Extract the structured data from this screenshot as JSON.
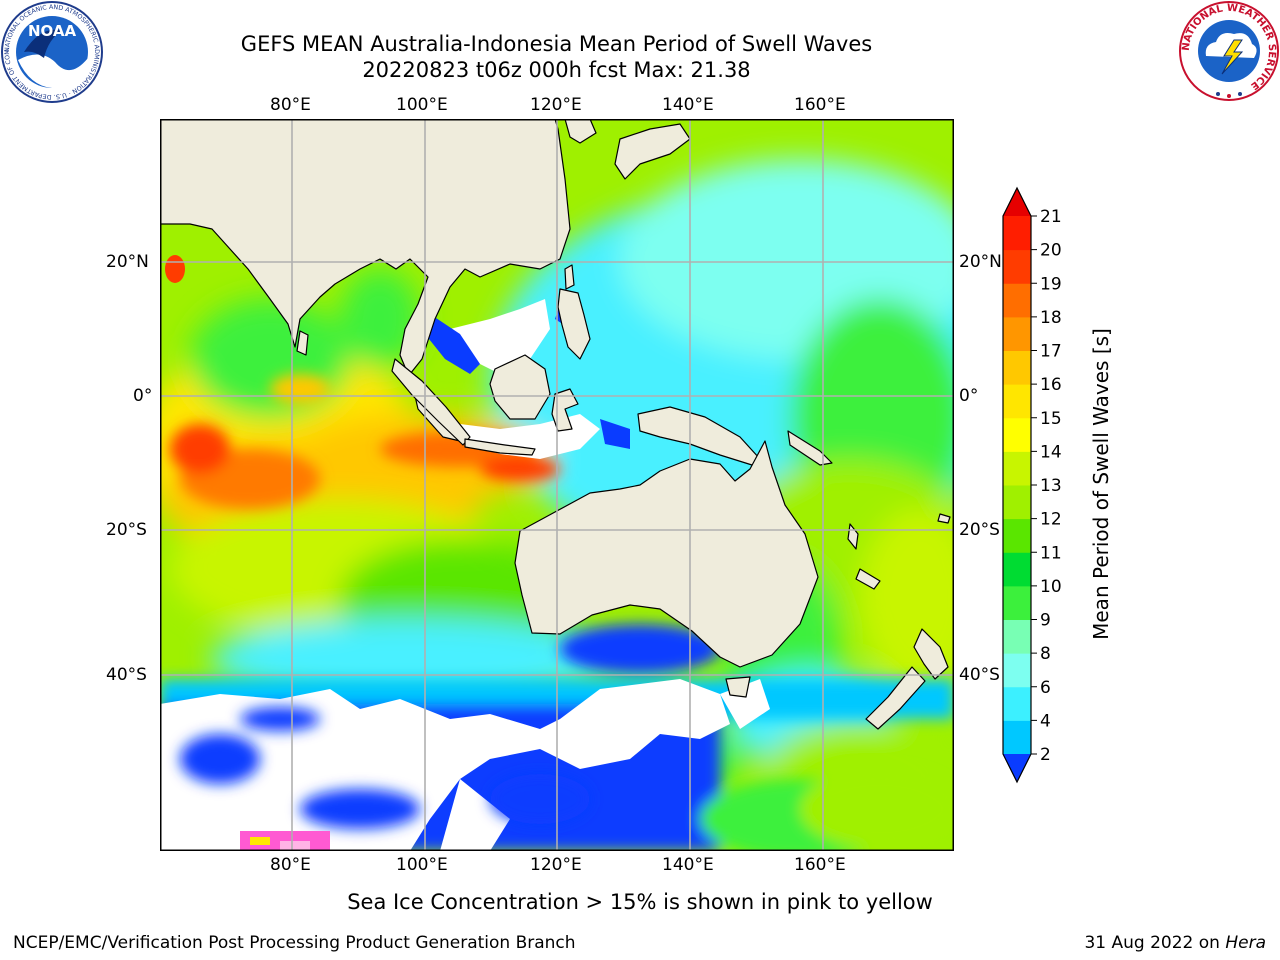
{
  "title": {
    "line1": "GEFS MEAN Australia-Indonesia Mean Period of Swell Waves",
    "line2": "20220823 t06z 000h fcst   Max: 21.38"
  },
  "logos": {
    "noaa_text": "NOAA",
    "noaa_ring": "NATIONAL OCEANIC AND ATMOSPHERIC ADMINISTRATION · U.S. DEPARTMENT OF COMMERCE",
    "nws_ring": "NATIONAL WEATHER SERVICE"
  },
  "map": {
    "lon_labels": [
      "80°E",
      "100°E",
      "120°E",
      "140°E",
      "160°E"
    ],
    "lat_labels_left": [
      "20°N",
      "0°",
      "20°S",
      "40°S"
    ],
    "lat_labels_right": [
      "20°N",
      "0°",
      "20°S",
      "40°S"
    ],
    "colors": {
      "land": "#efecdc",
      "ice_free_white": "#ffffff",
      "grid": "#b0b0b0"
    }
  },
  "colorbar": {
    "label": "Mean Period of Swell Waves [s]",
    "ticks": [
      "2",
      "4",
      "6",
      "8",
      "9",
      "10",
      "11",
      "12",
      "13",
      "14",
      "15",
      "16",
      "17",
      "18",
      "19",
      "20",
      "21"
    ],
    "colors": [
      "#0a3cff",
      "#00c8ff",
      "#3cf0ff",
      "#7dfff0",
      "#78ffb4",
      "#3cf03c",
      "#00dc32",
      "#5ae600",
      "#a0f000",
      "#c8f500",
      "#ffff00",
      "#ffe600",
      "#ffc800",
      "#ff9600",
      "#ff6e00",
      "#ff3c00",
      "#ff1e00",
      "#e60000"
    ]
  },
  "note": "Sea Ice Concentration > 15% is shown in pink to yellow",
  "footer": {
    "left": "NCEP/EMC/Verification Post Processing Product Generation Branch",
    "date": "31 Aug 2022 on",
    "machine": "Hera"
  }
}
